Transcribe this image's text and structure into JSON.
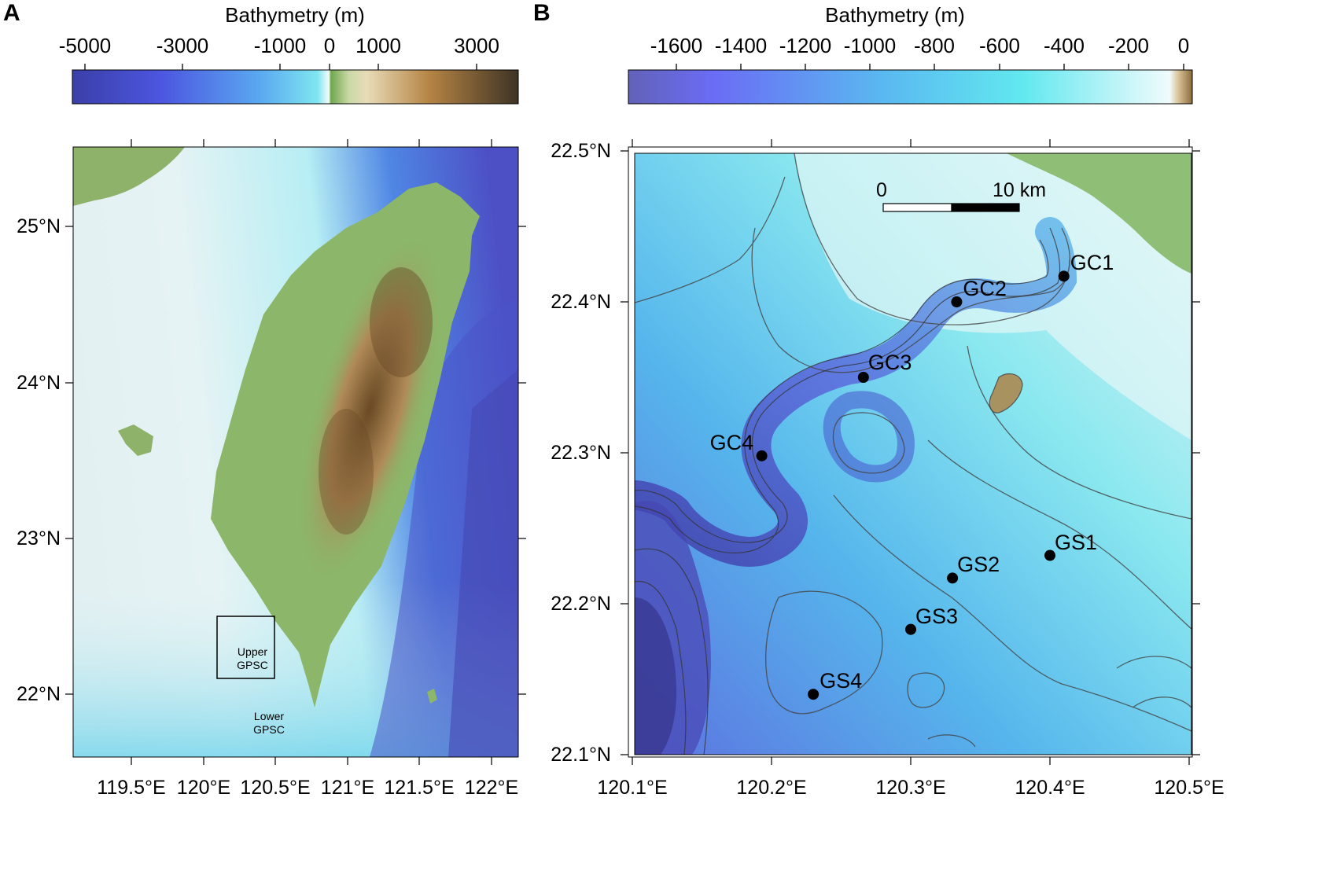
{
  "panel_a": {
    "label": "A",
    "colorbar": {
      "title": "Bathymetry (m)",
      "ticks": [
        "-5000",
        "-3000",
        "-1000",
        "0",
        "1000",
        "3000"
      ]
    },
    "lat_labels": [
      "25°N",
      "24°N",
      "23°N",
      "22°N"
    ],
    "lon_labels": [
      "119.5°E",
      "120°E",
      "120.5°E",
      "121°E",
      "121.5°E",
      "122°E"
    ],
    "box_label": [
      "Upper",
      "GPSC"
    ],
    "lower_label": [
      "Lower",
      "GPSC"
    ],
    "colors": {
      "deep": "#4a4fbd",
      "mid": "#5aa7ee",
      "shallow": "#bfeff2",
      "land_low": "#8fb86a",
      "land_high": "#7a5a30"
    }
  },
  "panel_b": {
    "label": "B",
    "colorbar": {
      "title": "Bathymetry (m)",
      "ticks": [
        "-1600",
        "-1400",
        "-1200",
        "-1000",
        "-800",
        "-600",
        "-400",
        "-200",
        "0"
      ]
    },
    "lat_labels": [
      "22.5°N",
      "22.4°N",
      "22.3°N",
      "22.2°N",
      "22.1°N"
    ],
    "lon_labels": [
      "120.1°E",
      "120.2°E",
      "120.3°E",
      "120.4°E",
      "120.5°E"
    ],
    "scale_bar": {
      "start": "0",
      "end": "10 km"
    },
    "sites": [
      {
        "name": "GC1",
        "lon": 120.41,
        "lat": 22.417
      },
      {
        "name": "GC2",
        "lon": 120.333,
        "lat": 22.4
      },
      {
        "name": "GC3",
        "lon": 120.266,
        "lat": 22.35
      },
      {
        "name": "GC4",
        "lon": 120.193,
        "lat": 22.298
      },
      {
        "name": "GS1",
        "lon": 120.4,
        "lat": 22.232
      },
      {
        "name": "GS2",
        "lon": 120.33,
        "lat": 22.217
      },
      {
        "name": "GS3",
        "lon": 120.3,
        "lat": 22.183
      },
      {
        "name": "GS4",
        "lon": 120.23,
        "lat": 22.14
      }
    ]
  }
}
